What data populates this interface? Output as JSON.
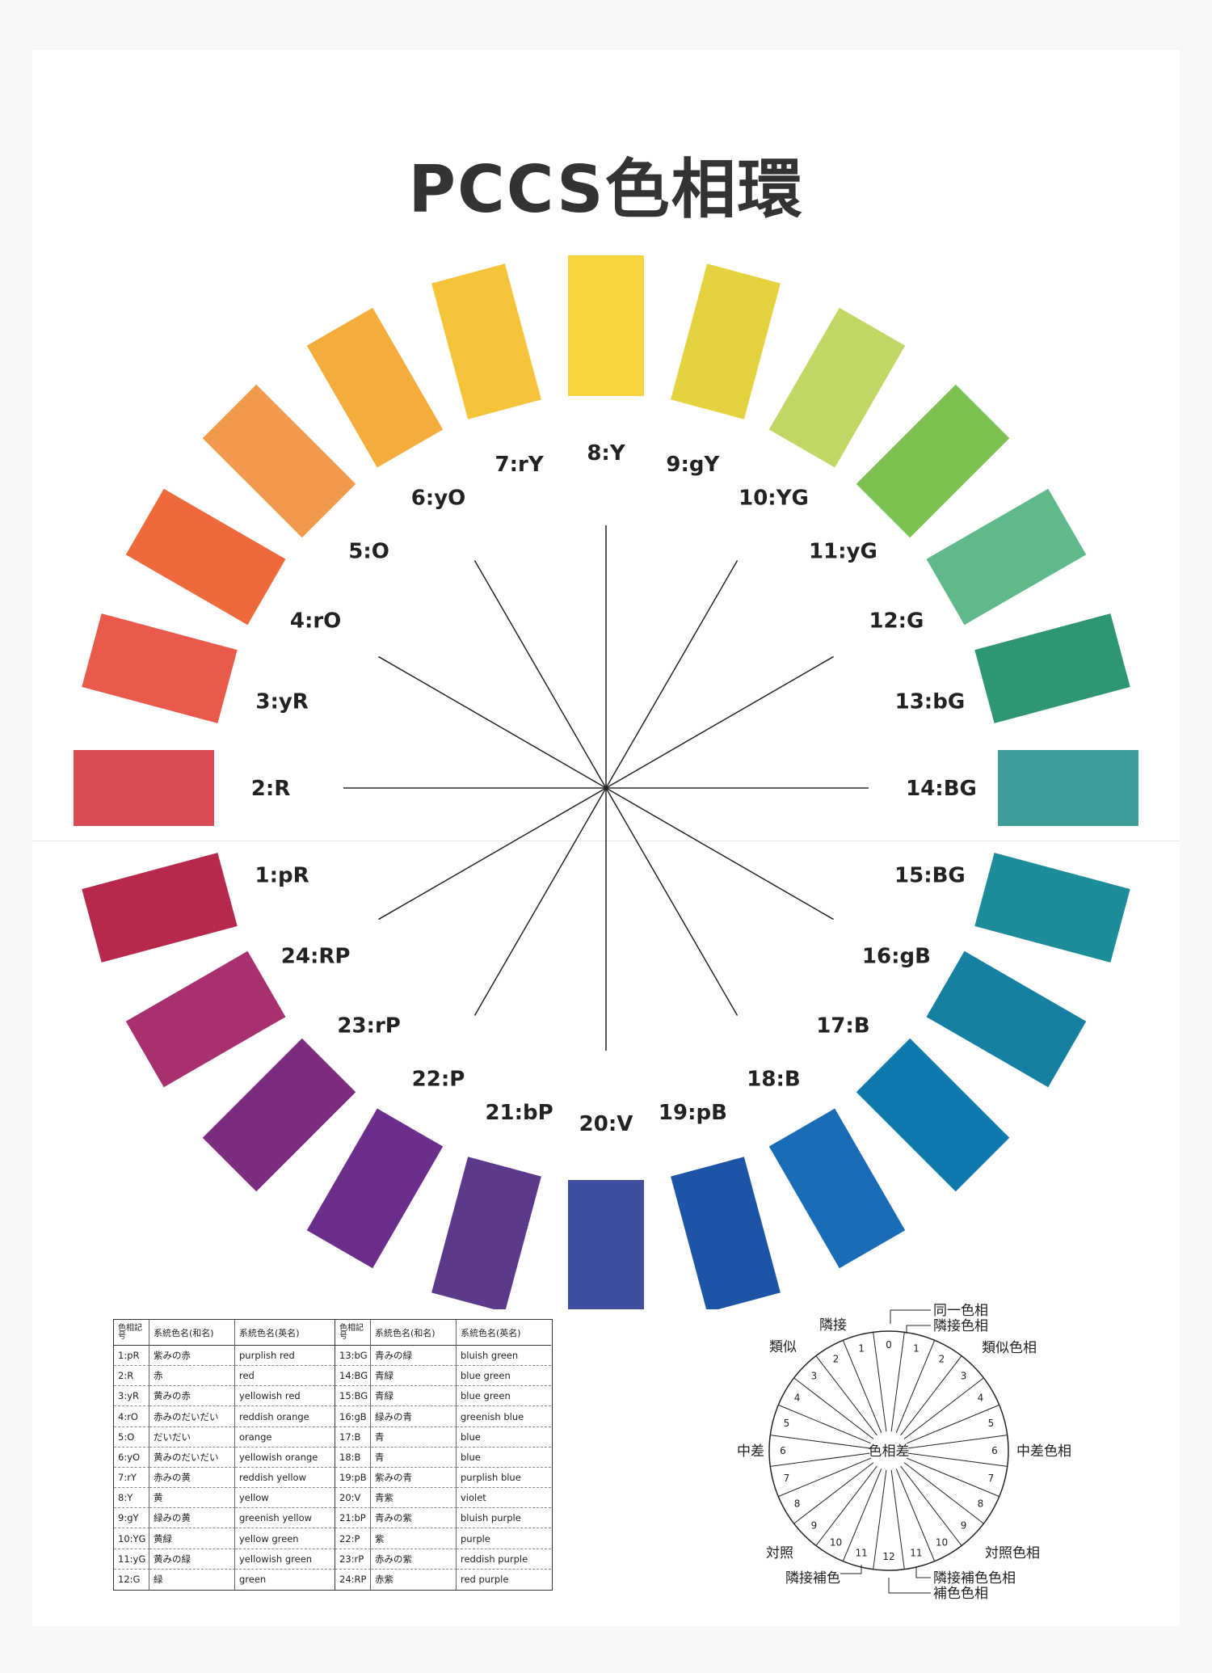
{
  "title": "PCCS色相環",
  "hues": [
    {
      "label": "1:pR",
      "color": "#b8284a"
    },
    {
      "label": "2:R",
      "color": "#d84b55"
    },
    {
      "label": "3:yR",
      "color": "#ea5a4b"
    },
    {
      "label": "4:rO",
      "color": "#ee6a3c"
    },
    {
      "label": "5:O",
      "color": "#f19a4b"
    },
    {
      "label": "6:yO",
      "color": "#f4ad3a"
    },
    {
      "label": "7:rY",
      "color": "#f6c43a"
    },
    {
      "label": "8:Y",
      "color": "#f8d340"
    },
    {
      "label": "9:gY",
      "color": "#e4d23e"
    },
    {
      "label": "10:YG",
      "color": "#c2d865"
    },
    {
      "label": "11:yG",
      "color": "#7cc152"
    },
    {
      "label": "12:G",
      "color": "#5fb98b"
    },
    {
      "label": "13:bG",
      "color": "#2e9575"
    },
    {
      "label": "14:BG",
      "color": "#3e9c9b"
    },
    {
      "label": "15:BG",
      "color": "#1d8d9a"
    },
    {
      "label": "16:gB",
      "color": "#1580a2"
    },
    {
      "label": "17:B",
      "color": "#0f78ad"
    },
    {
      "label": "18:B",
      "color": "#1a6cb6"
    },
    {
      "label": "19:pB",
      "color": "#1d55a6"
    },
    {
      "label": "20:V",
      "color": "#3f4e9f"
    },
    {
      "label": "21:bP",
      "color": "#5b3a8c"
    },
    {
      "label": "22:P",
      "color": "#6c2e8c"
    },
    {
      "label": "23:rP",
      "color": "#7c2c7f"
    },
    {
      "label": "24:RP",
      "color": "#a8306f"
    }
  ],
  "legend": {
    "headers": [
      "色相記号",
      "系統色名(和名)",
      "系統色名(英名)",
      "色相記号",
      "系統色名(和名)",
      "系統色名(英名)"
    ],
    "rows": [
      [
        "1:pR",
        "紫みの赤",
        "purplish red",
        "13:bG",
        "青みの緑",
        "bluish green"
      ],
      [
        "2:R",
        "赤",
        "red",
        "14:BG",
        "青緑",
        "blue green"
      ],
      [
        "3:yR",
        "黄みの赤",
        "yellowish red",
        "15:BG",
        "青緑",
        "blue green"
      ],
      [
        "4:rO",
        "赤みのだいだい",
        "reddish orange",
        "16:gB",
        "緑みの青",
        "greenish blue"
      ],
      [
        "5:O",
        "だいだい",
        "orange",
        "17:B",
        "青",
        "blue"
      ],
      [
        "6:yO",
        "黄みのだいだい",
        "yellowish orange",
        "18:B",
        "青",
        "blue"
      ],
      [
        "7:rY",
        "赤みの黄",
        "reddish yellow",
        "19:pB",
        "紫みの青",
        "purplish blue"
      ],
      [
        "8:Y",
        "黄",
        "yellow",
        "20:V",
        "青紫",
        "violet"
      ],
      [
        "9:gY",
        "緑みの黄",
        "greenish yellow",
        "21:bP",
        "青みの紫",
        "bluish purple"
      ],
      [
        "10:YG",
        "黄緑",
        "yellow green",
        "22:P",
        "紫",
        "purple"
      ],
      [
        "11:yG",
        "黄みの緑",
        "yellowish green",
        "23:rP",
        "赤みの紫",
        "reddish purple"
      ],
      [
        "12:G",
        "緑",
        "green",
        "24:RP",
        "赤紫",
        "red purple"
      ]
    ]
  },
  "hue_difference": {
    "center_label": "色相差",
    "left_numbers": [
      "1",
      "2",
      "3",
      "4",
      "5",
      "6",
      "7",
      "8",
      "9",
      "10",
      "11"
    ],
    "right_numbers": [
      "1",
      "2",
      "3",
      "4",
      "5",
      "6",
      "7",
      "8",
      "9",
      "10",
      "11"
    ],
    "top_number": "0",
    "bottom_number": "12",
    "labels": {
      "same": "同一色相",
      "adjacent_right": "隣接色相",
      "similar_right": "類似色相",
      "intermediate_right": "中差色相",
      "contrast_right": "対照色相",
      "adjacent_complement_right": "隣接補色色相",
      "complement": "補色色相",
      "adjacent_left": "隣接",
      "similar_left": "類似",
      "intermediate_left": "中差",
      "contrast_left": "対照",
      "adjacent_complement_left": "隣接補色"
    }
  }
}
